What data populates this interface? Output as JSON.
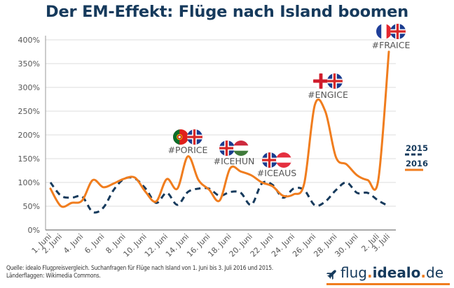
{
  "title": "Der EM-Effekt: Flüge nach Island boomen",
  "chart_data": {
    "type": "line",
    "title": "Der EM-Effekt: Flüge nach Island boomen",
    "xlabel": "",
    "ylabel": "",
    "ylim": [
      0,
      400
    ],
    "yticks": [
      0,
      50,
      100,
      150,
      200,
      250,
      300,
      350,
      400
    ],
    "ytick_labels": [
      "0%",
      "50%",
      "100%",
      "150%",
      "200%",
      "250%",
      "300%",
      "350%",
      "400%"
    ],
    "grid": true,
    "x": [
      "1. Juni",
      "2. Juni",
      "3. Juni",
      "4. Juni",
      "5. Juni",
      "6. Juni",
      "7. Juni",
      "8. Juni",
      "9. Juni",
      "10. Juni",
      "11. Juni",
      "12. Juni",
      "13. Juni",
      "14. Juni",
      "15. Juni",
      "16. Juni",
      "17. Juni",
      "18. Juni",
      "19. Juni",
      "20. Juni",
      "21. Juni",
      "22. Juni",
      "23. Juni",
      "24. Juni",
      "25. Juni",
      "26. Juni",
      "27. Juni",
      "28. Juni",
      "29. Juni",
      "30. Juni",
      "1. Juli",
      "2. Juli",
      "3. Juli"
    ],
    "xtick_labels": [
      "1. Juni",
      "2. Juni",
      "4. Juni",
      "6. Juni",
      "8. Juni",
      "10. Juni",
      "12. Juni",
      "14. Juni",
      "16. Juni",
      "18. Juni",
      "20. Juni",
      "22. Juni",
      "24. Juni",
      "26. Juni",
      "28. Juni",
      "30. Juni",
      "2. Juli",
      "3. Juli"
    ],
    "series": [
      {
        "name": "2015",
        "style": "dashed",
        "color": "#163a5c",
        "values": [
          100,
          72,
          68,
          70,
          38,
          47,
          85,
          108,
          108,
          87,
          57,
          78,
          53,
          80,
          87,
          87,
          72,
          80,
          78,
          53,
          98,
          95,
          68,
          87,
          84,
          52,
          60,
          84,
          100,
          78,
          78,
          62,
          50
        ]
      },
      {
        "name": "2016",
        "style": "solid",
        "color": "#f07d1e",
        "values": [
          87,
          50,
          57,
          62,
          105,
          90,
          98,
          108,
          110,
          80,
          60,
          107,
          87,
          155,
          105,
          85,
          62,
          130,
          123,
          115,
          100,
          92,
          72,
          75,
          98,
          263,
          249,
          153,
          138,
          115,
          105,
          105,
          375
        ]
      }
    ],
    "legend": {
      "placement": "right",
      "entries": [
        {
          "label": "2015",
          "style": "dashed",
          "color": "#163a5c"
        },
        {
          "label": "2016",
          "style": "solid",
          "color": "#f07d1e"
        }
      ]
    },
    "annotations": [
      {
        "text": "#PORICE",
        "x": "14. Juni",
        "flags": [
          "portugal",
          "iceland"
        ]
      },
      {
        "text": "#ICEHUN",
        "x": "18. Juni",
        "flags": [
          "iceland",
          "hungary"
        ]
      },
      {
        "text": "#ICEAUS",
        "x": "22. Juni",
        "flags": [
          "iceland",
          "austria"
        ]
      },
      {
        "text": "#ENGICE",
        "x": "27. Juni",
        "flags": [
          "england",
          "iceland"
        ]
      },
      {
        "text": "#FRAICE",
        "x": "3. Juli",
        "flags": [
          "france",
          "iceland"
        ]
      }
    ]
  },
  "footer": {
    "source_line1": "Quelle: idealo Flugpreisvergleich. Suchanfragen für Flüge nach Island von 1. Juni bis 3. Juli 2016 und 2015.",
    "source_line2": "Länderflaggen: Wikimedia Commons."
  },
  "logo": {
    "part1": "flug",
    "dot1": ".",
    "part2": "idealo",
    "dot2": ".",
    "part3": "de",
    "icon": "airplane-icon"
  },
  "colors": {
    "title": "#163a5c",
    "series_2015": "#163a5c",
    "series_2016": "#f07d1e",
    "grid": "#dddddd",
    "axis": "#888888"
  }
}
